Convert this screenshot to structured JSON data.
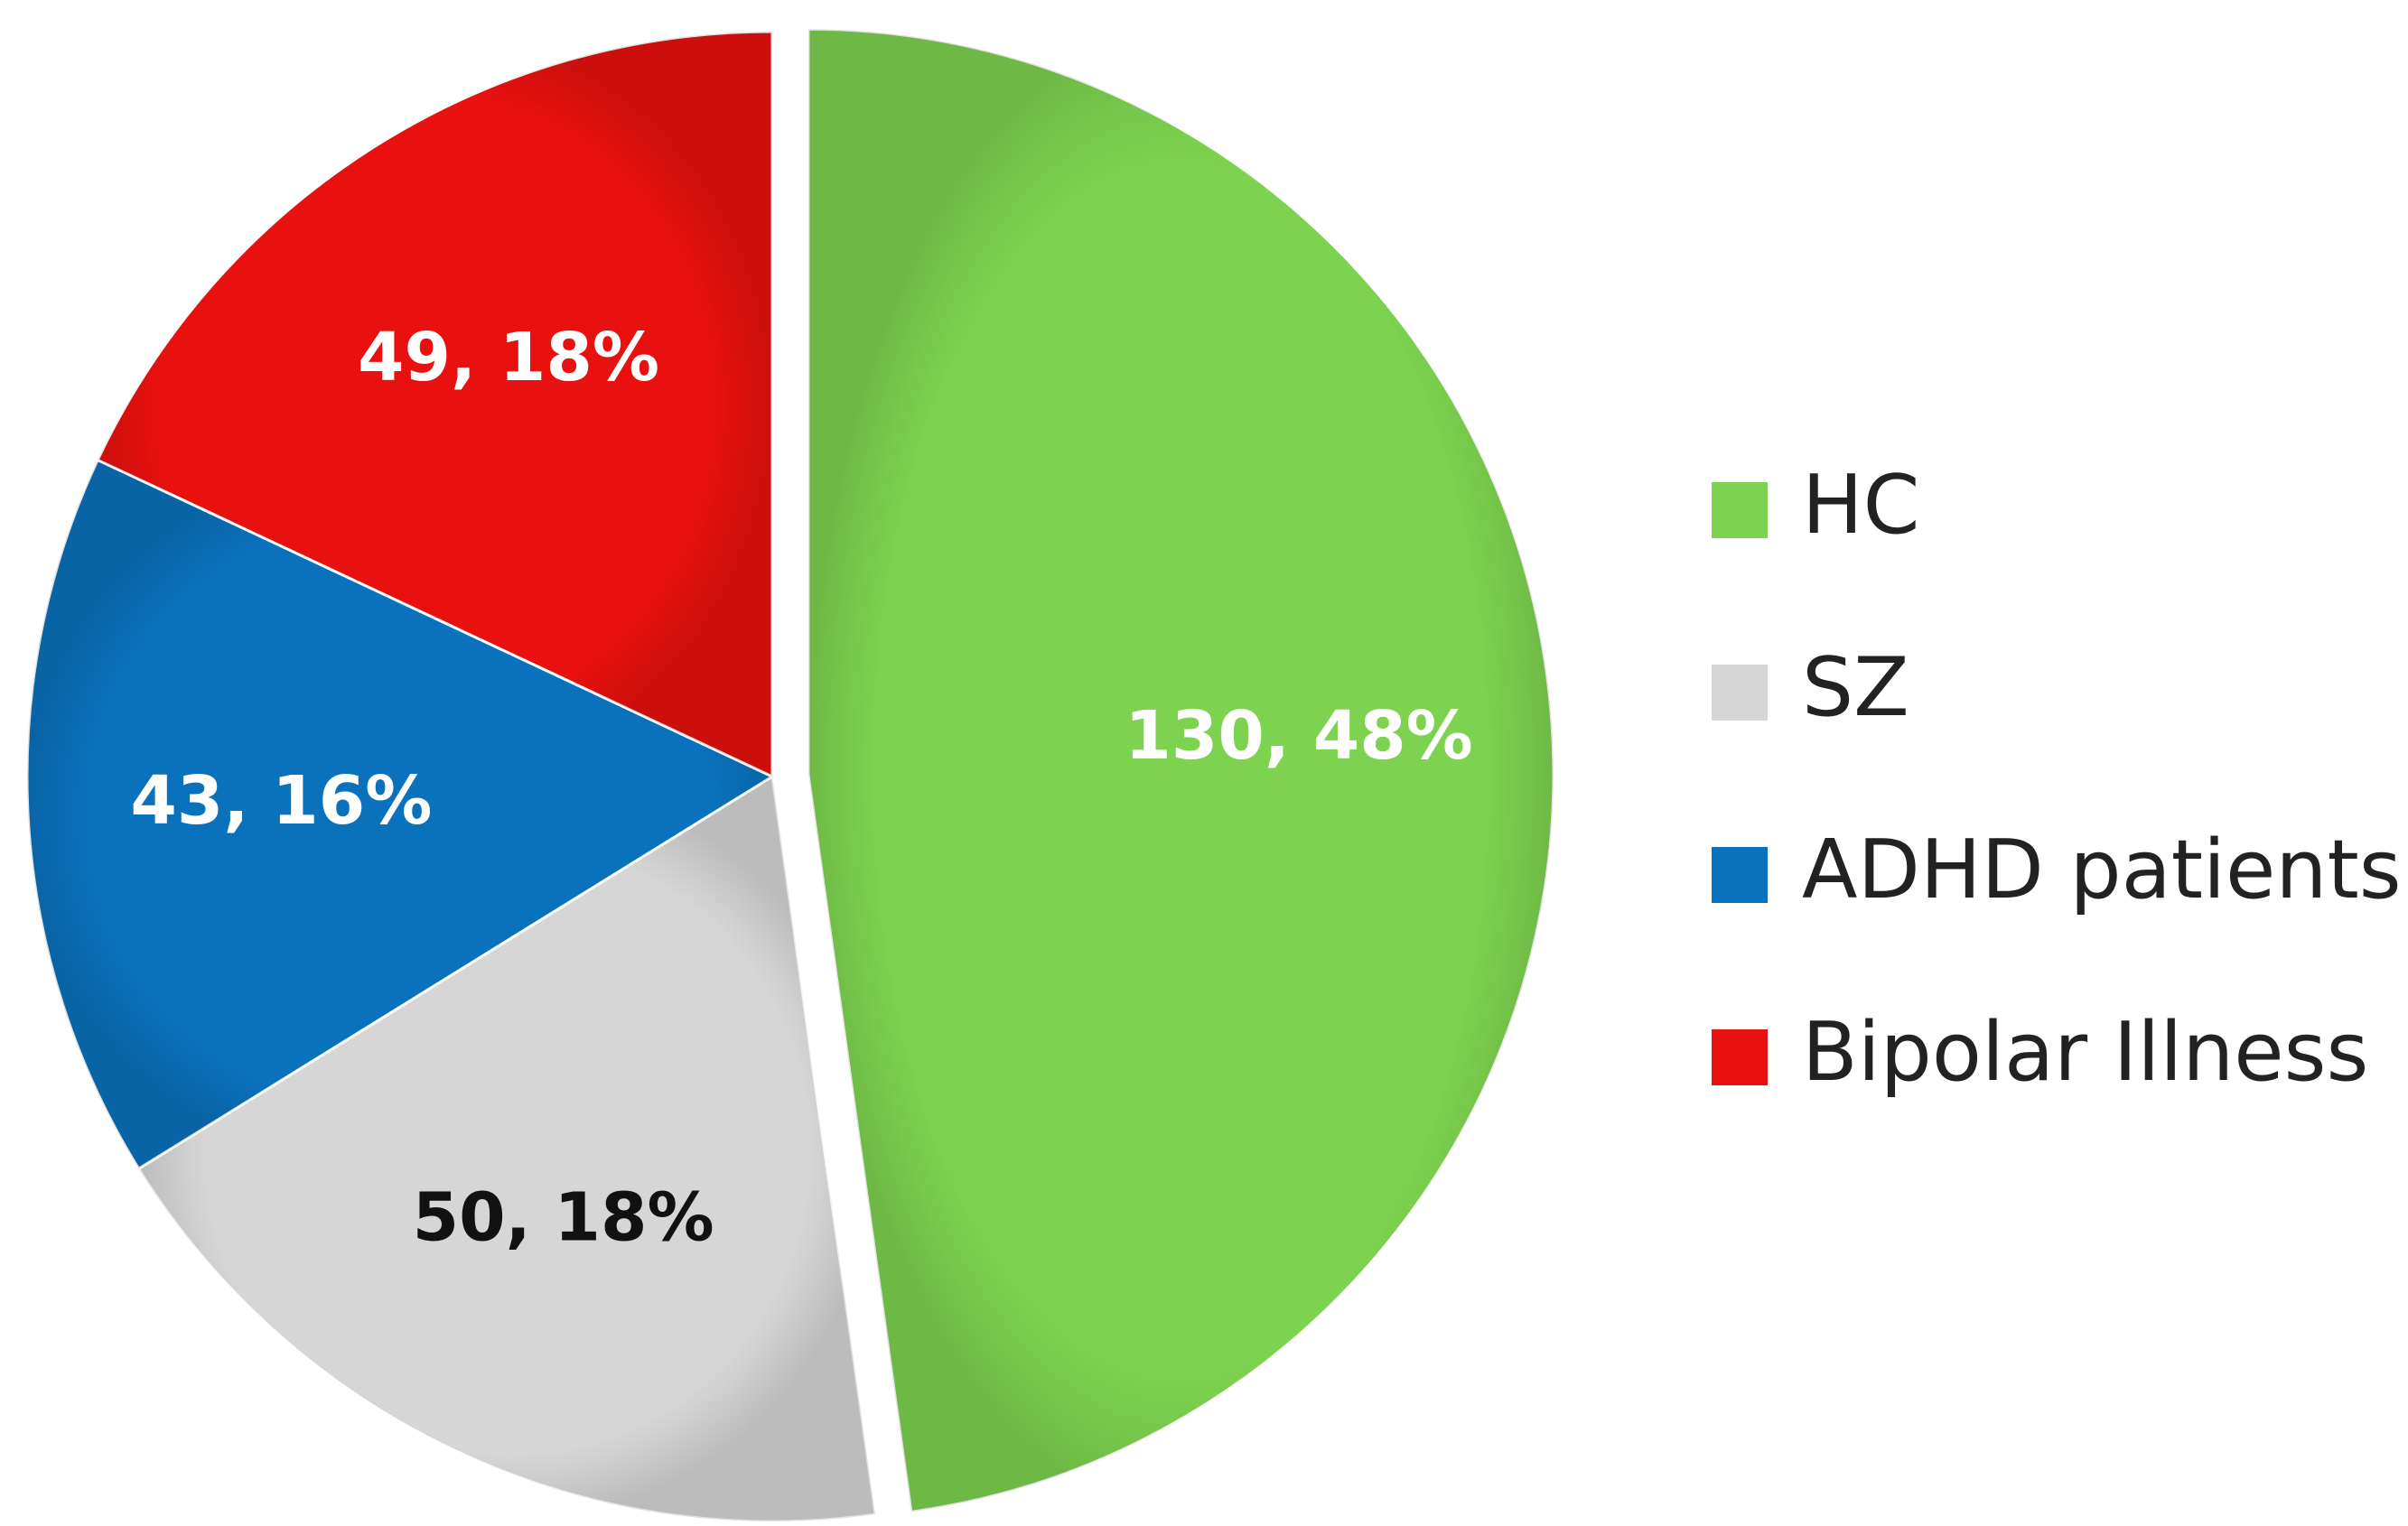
{
  "chart_data": {
    "type": "pie",
    "title": "",
    "start_angle_deg": 0,
    "slices": [
      {
        "label": "HC",
        "value": 130,
        "percent": 48,
        "color": "#7dd24f",
        "data_label": "130, 48%",
        "label_color": "#ffffff",
        "exploded": true
      },
      {
        "label": "SZ",
        "value": 50,
        "percent": 18,
        "color": "#d6d6d6",
        "data_label": "50, 18%",
        "label_color": "#111111",
        "exploded": false
      },
      {
        "label": "ADHD patients",
        "value": 43,
        "percent": 16,
        "color": "#0a72bd",
        "data_label": "43, 16%",
        "label_color": "#ffffff",
        "exploded": false
      },
      {
        "label": "Bipolar Illness",
        "value": 49,
        "percent": 18,
        "color": "#e8110f",
        "data_label": "49, 18%",
        "label_color": "#ffffff",
        "exploded": false
      }
    ],
    "legend": {
      "position": "right",
      "entries": [
        "HC",
        "SZ",
        "ADHD patients",
        "Bipolar Illness"
      ]
    }
  }
}
